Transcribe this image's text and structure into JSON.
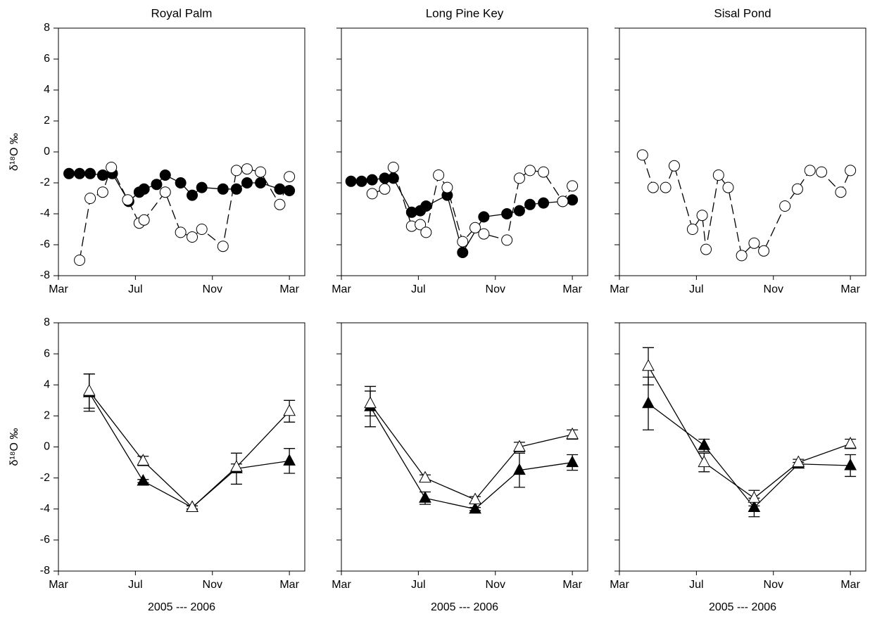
{
  "chart_data": [
    {
      "type": "line",
      "title": "Royal Palm",
      "ylabel": "δ¹⁸O ‰",
      "xlim": [
        0,
        12.8
      ],
      "xticks": [
        {
          "value": 0,
          "label": "Mar"
        },
        {
          "value": 4,
          "label": "Jul"
        },
        {
          "value": 8,
          "label": "Nov"
        },
        {
          "value": 12,
          "label": "Mar"
        }
      ],
      "ylim": [
        -8,
        8
      ],
      "yticks": [
        -8,
        -6,
        -4,
        -2,
        0,
        2,
        4,
        6,
        8
      ],
      "series": [
        {
          "color": "#000000",
          "marker": "filled-circle",
          "dash": false,
          "x": [
            0.55,
            1.1,
            1.65,
            2.3,
            2.8,
            3.65,
            4.2,
            4.45,
            5.1,
            5.55,
            6.35,
            6.95,
            7.45,
            8.55,
            9.25,
            9.8,
            10.5,
            11.5,
            12.0
          ],
          "values": [
            -1.4,
            -1.4,
            -1.4,
            -1.5,
            -1.4,
            -3.2,
            -2.6,
            -2.4,
            -2.1,
            -1.5,
            -2.0,
            -2.8,
            -2.3,
            -2.4,
            -2.4,
            -2.0,
            -2.0,
            -2.4,
            -2.5
          ]
        },
        {
          "color": "#000000",
          "marker": "open-circle",
          "dash": true,
          "x": [
            1.1,
            1.65,
            2.3,
            2.75,
            3.6,
            4.2,
            4.45,
            5.55,
            6.35,
            6.95,
            7.45,
            8.55,
            9.25,
            9.8,
            10.5,
            11.5,
            12.0
          ],
          "values": [
            -7.0,
            -3.0,
            -2.6,
            -1.0,
            -3.1,
            -4.6,
            -4.4,
            -2.6,
            -5.2,
            -5.5,
            -5.0,
            -6.1,
            -1.2,
            -1.1,
            -1.3,
            -3.4,
            -1.6
          ]
        }
      ]
    },
    {
      "type": "line",
      "title": "Long Pine Key",
      "xlim": [
        0,
        12.8
      ],
      "xticks": [
        {
          "value": 0,
          "label": "Mar"
        },
        {
          "value": 4,
          "label": "Jul"
        },
        {
          "value": 8,
          "label": "Nov"
        },
        {
          "value": 12,
          "label": "Mar"
        }
      ],
      "ylim": [
        -8,
        8
      ],
      "yticks": [
        -8,
        -6,
        -4,
        -2,
        0,
        2,
        4,
        6,
        8
      ],
      "series": [
        {
          "color": "#000000",
          "marker": "filled-circle",
          "dash": false,
          "x": [
            0.5,
            1.05,
            1.6,
            2.25,
            2.7,
            3.65,
            4.1,
            4.4,
            5.5,
            6.3,
            7.4,
            8.6,
            9.25,
            9.8,
            10.5,
            11.5,
            12.0
          ],
          "values": [
            -1.9,
            -1.9,
            -1.8,
            -1.7,
            -1.7,
            -3.9,
            -3.8,
            -3.5,
            -2.8,
            -6.5,
            -4.2,
            -4.0,
            -3.8,
            -3.4,
            -3.3,
            -3.2,
            -3.1
          ]
        },
        {
          "color": "#000000",
          "marker": "open-circle",
          "dash": true,
          "x": [
            1.6,
            2.25,
            2.7,
            3.65,
            4.1,
            4.4,
            5.05,
            5.5,
            6.3,
            6.95,
            7.4,
            8.6,
            9.25,
            9.8,
            10.5,
            11.5,
            12.0
          ],
          "values": [
            -2.7,
            -2.4,
            -1.0,
            -4.8,
            -4.7,
            -5.2,
            -1.5,
            -2.3,
            -5.8,
            -4.9,
            -5.3,
            -5.7,
            -1.7,
            -1.2,
            -1.3,
            -3.2,
            -2.2
          ]
        }
      ]
    },
    {
      "type": "line",
      "title": "Sisal Pond",
      "xlim": [
        0,
        12.8
      ],
      "xticks": [
        {
          "value": 0,
          "label": "Mar"
        },
        {
          "value": 4,
          "label": "Jul"
        },
        {
          "value": 8,
          "label": "Nov"
        },
        {
          "value": 12,
          "label": "Mar"
        }
      ],
      "ylim": [
        -8,
        8
      ],
      "yticks": [
        -8,
        -6,
        -4,
        -2,
        0,
        2,
        4,
        6,
        8
      ],
      "series": [
        {
          "color": "#000000",
          "marker": "open-circle",
          "dash": true,
          "x": [
            1.2,
            1.75,
            2.4,
            2.85,
            3.8,
            4.3,
            4.5,
            5.15,
            5.65,
            6.35,
            7.0,
            7.5,
            8.6,
            9.25,
            9.9,
            10.5,
            11.5,
            12.0
          ],
          "values": [
            -0.2,
            -2.3,
            -2.3,
            -0.9,
            -5.0,
            -4.1,
            -6.3,
            -1.5,
            -2.3,
            -6.7,
            -5.9,
            -6.4,
            -3.5,
            -2.4,
            -1.2,
            -1.3,
            -2.6,
            -1.2
          ]
        }
      ]
    },
    {
      "type": "line",
      "ylabel": "δ¹⁸O ‰",
      "xlabel": "2005 --- 2006",
      "xlim": [
        0,
        12.8
      ],
      "xticks": [
        {
          "value": 0,
          "label": "Mar"
        },
        {
          "value": 4,
          "label": "Jul"
        },
        {
          "value": 8,
          "label": "Nov"
        },
        {
          "value": 12,
          "label": "Mar"
        }
      ],
      "ylim": [
        -8,
        8
      ],
      "yticks": [
        -8,
        -6,
        -4,
        -2,
        0,
        2,
        4,
        6,
        8
      ],
      "series": [
        {
          "color": "#000000",
          "marker": "filled-triangle",
          "dash": false,
          "x": [
            1.6,
            4.4,
            6.95,
            9.25,
            12.0
          ],
          "values": [
            3.5,
            -2.2,
            -3.9,
            -1.4,
            -0.9
          ],
          "errors": [
            1.2,
            0.1,
            0.1,
            1.0,
            0.8
          ]
        },
        {
          "color": "#000000",
          "marker": "open-triangle",
          "dash": false,
          "x": [
            1.6,
            4.4,
            6.95,
            9.25,
            12.0
          ],
          "values": [
            3.6,
            -0.9,
            -3.9,
            -1.3,
            2.3
          ],
          "errors": [
            1.1,
            0.3,
            0.1,
            0.2,
            0.7
          ]
        }
      ]
    },
    {
      "type": "line",
      "xlabel": "2005 --- 2006",
      "xlim": [
        0,
        12.8
      ],
      "xticks": [
        {
          "value": 0,
          "label": "Mar"
        },
        {
          "value": 4,
          "label": "Jul"
        },
        {
          "value": 8,
          "label": "Nov"
        },
        {
          "value": 12,
          "label": "Mar"
        }
      ],
      "ylim": [
        -8,
        8
      ],
      "yticks": [
        -8,
        -6,
        -4,
        -2,
        0,
        2,
        4,
        6,
        8
      ],
      "series": [
        {
          "color": "#000000",
          "marker": "filled-triangle",
          "dash": false,
          "x": [
            1.5,
            4.35,
            6.95,
            9.25,
            12.0
          ],
          "values": [
            2.6,
            -3.3,
            -4.0,
            -1.5,
            -1.0
          ],
          "errors": [
            1.3,
            0.4,
            0.1,
            1.1,
            0.5
          ]
        },
        {
          "color": "#000000",
          "marker": "open-triangle",
          "dash": false,
          "x": [
            1.5,
            4.35,
            6.95,
            9.25,
            12.0
          ],
          "values": [
            2.8,
            -2.0,
            -3.4,
            0.0,
            0.8
          ],
          "errors": [
            0.8,
            0.2,
            0.2,
            0.3,
            0.3
          ]
        }
      ]
    },
    {
      "type": "line",
      "xlabel": "2005 --- 2006",
      "xlim": [
        0,
        12.8
      ],
      "xticks": [
        {
          "value": 0,
          "label": "Mar"
        },
        {
          "value": 4,
          "label": "Jul"
        },
        {
          "value": 8,
          "label": "Nov"
        },
        {
          "value": 12,
          "label": "Mar"
        }
      ],
      "ylim": [
        -8,
        8
      ],
      "yticks": [
        -8,
        -6,
        -4,
        -2,
        0,
        2,
        4,
        6,
        8
      ],
      "series": [
        {
          "color": "#000000",
          "marker": "filled-triangle",
          "dash": false,
          "x": [
            1.5,
            4.4,
            7.0,
            9.3,
            12.0
          ],
          "values": [
            2.8,
            0.1,
            -3.9,
            -1.1,
            -1.2
          ],
          "errors": [
            1.7,
            0.4,
            0.6,
            0.1,
            0.7
          ]
        },
        {
          "color": "#000000",
          "marker": "open-triangle",
          "dash": false,
          "x": [
            1.5,
            4.4,
            7.0,
            9.3,
            12.0
          ],
          "values": [
            5.2,
            -1.0,
            -3.3,
            -1.0,
            0.2
          ],
          "errors": [
            1.2,
            0.6,
            0.5,
            0.2,
            0.3
          ]
        }
      ]
    }
  ]
}
